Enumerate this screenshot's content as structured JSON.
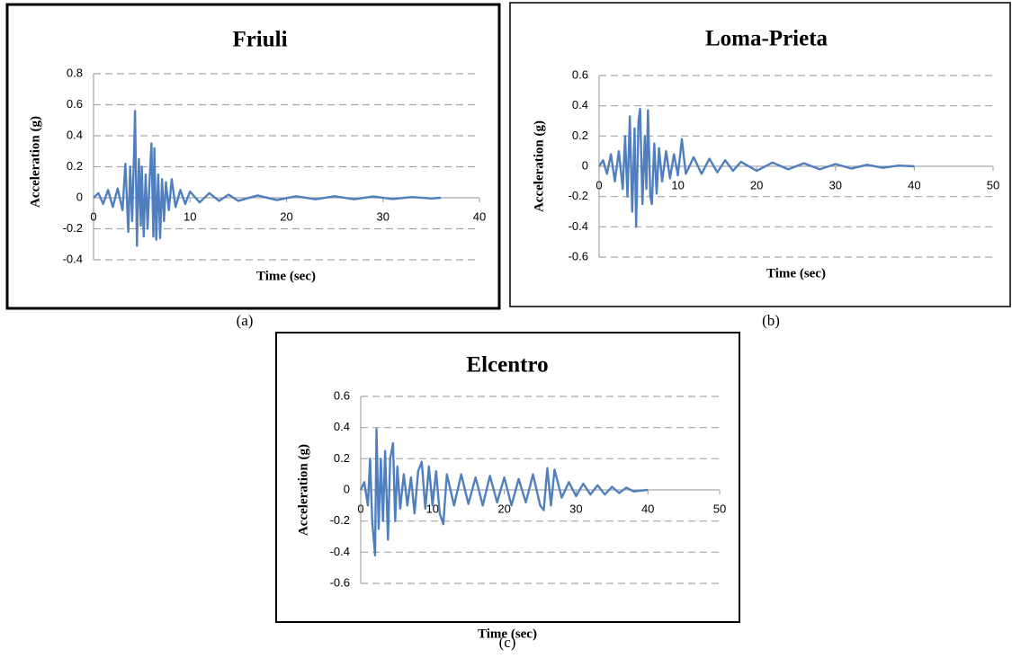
{
  "chart_data": [
    {
      "type": "line",
      "title": "Friuli",
      "panel_label": "(a)",
      "xlabel": "Time (sec)",
      "ylabel": "Acceleration (g)",
      "color": "#4f7fbf",
      "grid": true,
      "xlim": [
        0,
        40
      ],
      "xticks": [
        0,
        10,
        20,
        30,
        40
      ],
      "ylim": [
        -0.4,
        0.8
      ],
      "yticks": [
        -0.4,
        -0.2,
        0,
        0.2,
        0.4,
        0.6,
        0.8
      ],
      "x": [
        0,
        0.5,
        1,
        1.5,
        2,
        2.5,
        3,
        3.3,
        3.6,
        3.8,
        4.0,
        4.2,
        4.3,
        4.5,
        4.7,
        4.9,
        5.0,
        5.2,
        5.4,
        5.6,
        5.8,
        6.0,
        6.2,
        6.3,
        6.5,
        6.7,
        6.9,
        7.1,
        7.3,
        7.5,
        7.8,
        8.1,
        8.5,
        9,
        9.5,
        10,
        11,
        12,
        13,
        14,
        15,
        17,
        19,
        21,
        23,
        25,
        27,
        29,
        31,
        33,
        35,
        36
      ],
      "values": [
        0,
        0.03,
        -0.04,
        0.05,
        -0.06,
        0.06,
        -0.08,
        0.22,
        -0.22,
        0.2,
        -0.15,
        0.3,
        0.56,
        -0.31,
        0.25,
        -0.18,
        0.2,
        -0.25,
        0.15,
        -0.2,
        0.1,
        0.35,
        -0.25,
        0.32,
        -0.27,
        0.15,
        -0.26,
        0.12,
        -0.15,
        0.1,
        -0.08,
        0.12,
        -0.06,
        0.05,
        -0.04,
        0.04,
        -0.03,
        0.03,
        -0.02,
        0.02,
        -0.02,
        0.015,
        -0.015,
        0.01,
        -0.01,
        0.01,
        -0.01,
        0.008,
        -0.008,
        0.005,
        -0.005,
        0
      ]
    },
    {
      "type": "line",
      "title": "Loma-Prieta",
      "panel_label": "(b)",
      "xlabel": "Time (sec)",
      "ylabel": "Acceleration (g)",
      "color": "#4f7fbf",
      "grid": true,
      "xlim": [
        0,
        50
      ],
      "xticks": [
        0,
        10,
        20,
        30,
        40,
        50
      ],
      "ylim": [
        -0.6,
        0.6
      ],
      "yticks": [
        -0.6,
        -0.4,
        -0.2,
        0,
        0.2,
        0.4,
        0.6
      ],
      "x": [
        0,
        0.5,
        1,
        1.5,
        2,
        2.5,
        3,
        3.3,
        3.6,
        3.9,
        4.2,
        4.5,
        4.7,
        5.0,
        5.2,
        5.5,
        5.8,
        6.0,
        6.2,
        6.5,
        6.7,
        7.0,
        7.3,
        7.6,
        8,
        8.5,
        9,
        9.5,
        10,
        10.5,
        11,
        12,
        13,
        14,
        15,
        16,
        17,
        18,
        20,
        22,
        24,
        26,
        28,
        30,
        32,
        34,
        36,
        38,
        40
      ],
      "values": [
        0,
        0.04,
        -0.05,
        0.08,
        -0.1,
        0.1,
        -0.15,
        0.2,
        -0.2,
        0.33,
        -0.3,
        0.25,
        -0.4,
        0.3,
        0.38,
        -0.25,
        0.2,
        -0.15,
        0.37,
        -0.2,
        -0.25,
        0.15,
        -0.18,
        0.12,
        -0.1,
        0.1,
        -0.08,
        0.08,
        -0.06,
        0.18,
        -0.05,
        0.06,
        -0.05,
        0.05,
        -0.04,
        0.04,
        -0.03,
        0.03,
        -0.03,
        0.025,
        -0.02,
        0.02,
        -0.02,
        0.015,
        -0.015,
        0.01,
        -0.01,
        0.005,
        0
      ]
    },
    {
      "type": "line",
      "title": "Elcentro",
      "panel_label": "(c)",
      "xlabel": "Time (sec)",
      "ylabel": "Acceleration (g)",
      "color": "#4f7fbf",
      "grid": true,
      "xlim": [
        0,
        50
      ],
      "xticks": [
        0,
        10,
        20,
        30,
        40,
        50
      ],
      "ylim": [
        -0.6,
        0.6
      ],
      "yticks": [
        -0.6,
        -0.4,
        -0.2,
        0,
        0.2,
        0.4,
        0.6
      ],
      "x": [
        0,
        0.5,
        1,
        1.3,
        1.6,
        2.0,
        2.2,
        2.5,
        2.8,
        3.1,
        3.4,
        3.8,
        4.1,
        4.5,
        4.8,
        5.1,
        5.5,
        6,
        6.5,
        7,
        7.5,
        8,
        8.5,
        9,
        9.5,
        10,
        10.5,
        11,
        11.5,
        12,
        13,
        14,
        15,
        16,
        17,
        18,
        19,
        20,
        21,
        22,
        23,
        24,
        25,
        25.5,
        26,
        26.5,
        27,
        28,
        29,
        30,
        31,
        32,
        33,
        34,
        35,
        36,
        37,
        38,
        40
      ],
      "values": [
        0,
        0.05,
        -0.1,
        0.2,
        -0.2,
        -0.42,
        0.39,
        -0.25,
        0.2,
        -0.2,
        0.25,
        -0.32,
        0.2,
        0.3,
        -0.2,
        0.15,
        -0.12,
        0.1,
        -0.1,
        0.08,
        -0.15,
        0.12,
        0.18,
        -0.12,
        0.15,
        -0.1,
        0.12,
        -0.15,
        -0.22,
        0.1,
        -0.1,
        0.1,
        -0.09,
        0.08,
        -0.1,
        0.09,
        -0.08,
        0.08,
        -0.1,
        0.07,
        -0.08,
        0.1,
        -0.1,
        -0.13,
        0.14,
        -0.1,
        0.13,
        -0.05,
        0.05,
        -0.04,
        0.04,
        -0.03,
        0.03,
        -0.03,
        0.02,
        -0.02,
        0.015,
        -0.01,
        0
      ]
    }
  ]
}
